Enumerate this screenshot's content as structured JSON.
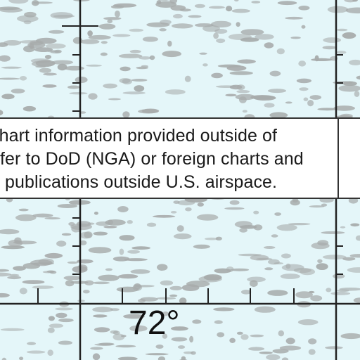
{
  "map": {
    "background_color": "#e4f6f9",
    "line_color": "#222222",
    "stipple_color": "#a7abab"
  },
  "note": {
    "line1": "chart information provided outside of",
    "line2": "efer to DoD (NGA) or foreign charts and",
    "line3": "n publications outside U.S. airspace."
  },
  "labels": {
    "longitude": "72°"
  }
}
